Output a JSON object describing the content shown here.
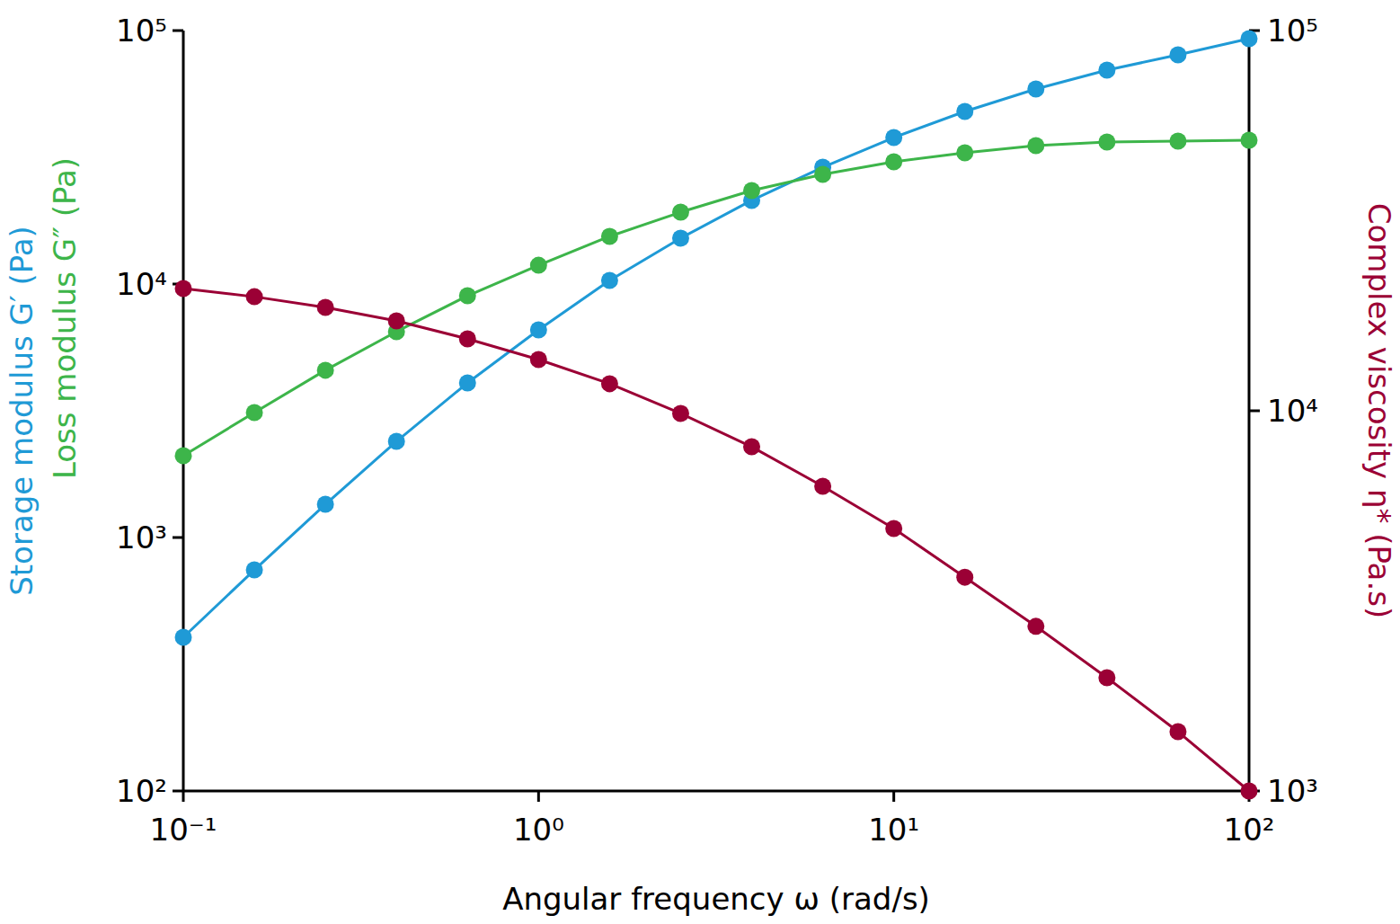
{
  "chart_data": {
    "type": "line",
    "log": true,
    "grid": false,
    "marker": "circle",
    "xlabel": "Angular frequency ω (rad/s)",
    "x": [
      0.1,
      0.1585,
      0.2512,
      0.3981,
      0.631,
      1,
      1.585,
      2.512,
      3.981,
      6.31,
      10,
      15.85,
      25.12,
      39.81,
      63.1,
      100
    ],
    "xlim": [
      0.1,
      100
    ],
    "xticks": [
      {
        "value": 0.1,
        "label": "10⁻¹"
      },
      {
        "value": 1,
        "label": "10⁰"
      },
      {
        "value": 10,
        "label": "10¹"
      },
      {
        "value": 100,
        "label": "10²"
      }
    ],
    "ylim": [
      100,
      100000
    ],
    "yticks": [
      {
        "value": 100,
        "label": "10²"
      },
      {
        "value": 1000,
        "label": "10³"
      },
      {
        "value": 10000,
        "label": "10⁴"
      },
      {
        "value": 100000,
        "label": "10⁵"
      }
    ],
    "y2lim": [
      1000,
      100000
    ],
    "y2ticks": [
      {
        "value": 1000,
        "label": "10³"
      },
      {
        "value": 10000,
        "label": "10⁴"
      },
      {
        "value": 100000,
        "label": "10⁵"
      }
    ],
    "series": [
      {
        "name": "Storage modulus G′ (Pa)",
        "color": "#1f9ad6",
        "axis": "y",
        "values": [
          404,
          745,
          1352,
          2395,
          4074,
          6592,
          10330,
          15170,
          21380,
          28900,
          37840,
          47950,
          58830,
          69820,
          80210,
          92900
        ]
      },
      {
        "name": "Loss modulus G″ (Pa)",
        "color": "#3db54a",
        "axis": "y",
        "values": [
          2103,
          3112,
          4570,
          6490,
          8990,
          11860,
          15420,
          19210,
          23380,
          27080,
          30360,
          32950,
          35160,
          36310,
          36640,
          36920
        ]
      },
      {
        "name": "Complex viscosity η* (Pa.s)",
        "color": "#9b0035",
        "axis": "y2",
        "values": [
          20970,
          19950,
          18700,
          17230,
          15460,
          13640,
          11780,
          9840,
          8040,
          6330,
          4900,
          3650,
          2710,
          1986,
          1432,
          1000
        ]
      }
    ]
  }
}
